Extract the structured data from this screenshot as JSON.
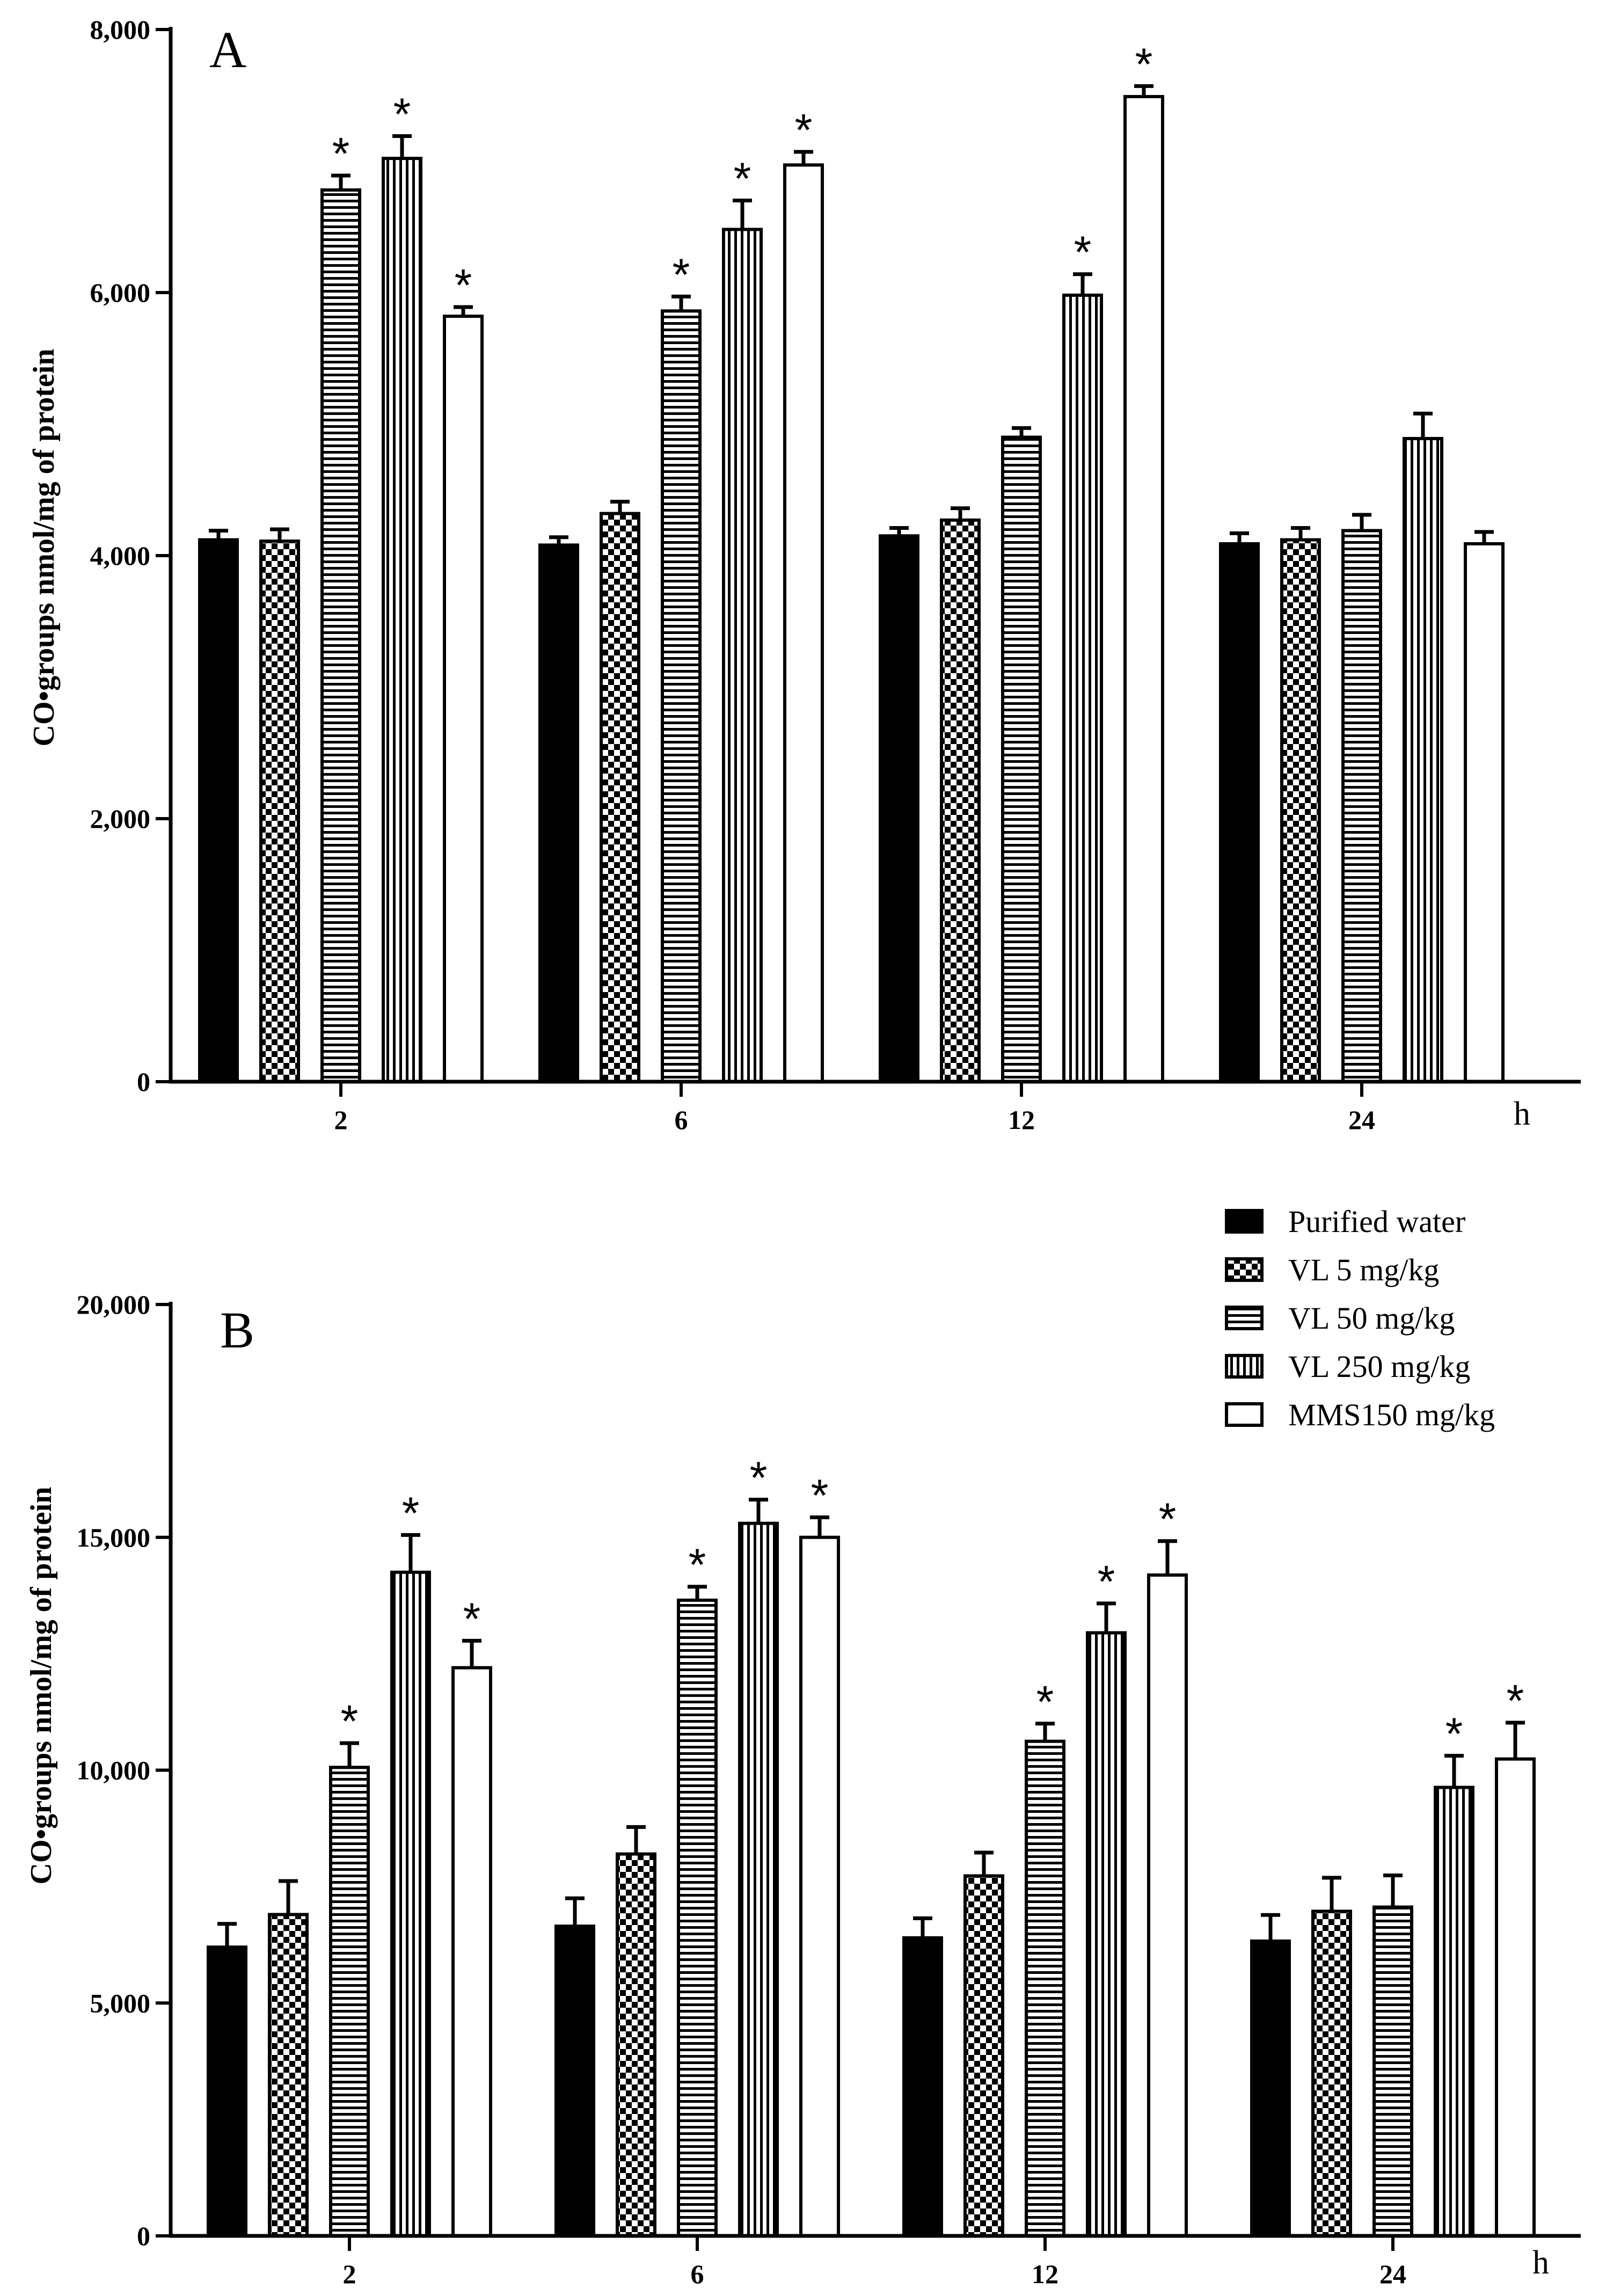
{
  "legend": {
    "items": [
      {
        "label": "Purified water",
        "pattern": "solid"
      },
      {
        "label": "VL 5 mg/kg",
        "pattern": "checker"
      },
      {
        "label": "VL 50 mg/kg",
        "pattern": "hlines"
      },
      {
        "label": "VL 250 mg/kg",
        "pattern": "vlines"
      },
      {
        "label": "MMS150 mg/kg",
        "pattern": "empty"
      }
    ]
  },
  "chart_data": [
    {
      "type": "bar",
      "panel_label": "A",
      "ylabel": "CO•groups nmol/mg of protein",
      "xunit": "h",
      "categories": [
        "2",
        "6",
        "12",
        "24"
      ],
      "ylim": [
        0,
        8000
      ],
      "yticks": [
        0,
        2000,
        4000,
        6000,
        8000
      ],
      "ytick_labels": [
        "0",
        "2,000",
        "4,000",
        "6,000",
        "8,000"
      ],
      "series": [
        {
          "name": "Purified water",
          "values": [
            4120,
            4080,
            4150,
            4090
          ],
          "errors": [
            70,
            60,
            60,
            80
          ],
          "significant": [
            false,
            false,
            false,
            false
          ]
        },
        {
          "name": "VL 5 mg/kg",
          "values": [
            4110,
            4320,
            4270,
            4120
          ],
          "errors": [
            90,
            90,
            90,
            90
          ],
          "significant": [
            false,
            false,
            false,
            false
          ]
        },
        {
          "name": "VL 50 mg/kg",
          "values": [
            6780,
            5860,
            4900,
            4190
          ],
          "errors": [
            110,
            110,
            70,
            120
          ],
          "significant": [
            true,
            true,
            false,
            false
          ]
        },
        {
          "name": "VL 250 mg/kg",
          "values": [
            7020,
            6480,
            5980,
            4890
          ],
          "errors": [
            170,
            220,
            160,
            190
          ],
          "significant": [
            true,
            true,
            true,
            false
          ]
        },
        {
          "name": "MMS150 mg/kg",
          "values": [
            5820,
            6970,
            7490,
            4090
          ],
          "errors": [
            70,
            100,
            80,
            90
          ],
          "significant": [
            true,
            true,
            true,
            false
          ]
        }
      ]
    },
    {
      "type": "bar",
      "panel_label": "B",
      "ylabel": "CO•groups nmol/mg of protein",
      "xunit": "h",
      "categories": [
        "2",
        "6",
        "12",
        "24"
      ],
      "ylim": [
        0,
        20000
      ],
      "yticks": [
        0,
        5000,
        10000,
        15000,
        20000
      ],
      "ytick_labels": [
        "0",
        "5,000",
        "10,000",
        "15,000",
        "20,000"
      ],
      "series": [
        {
          "name": "Purified water",
          "values": [
            6200,
            6650,
            6400,
            6330
          ],
          "errors": [
            500,
            600,
            420,
            560
          ],
          "significant": [
            false,
            false,
            false,
            false
          ]
        },
        {
          "name": "VL 5 mg/kg",
          "values": [
            6900,
            8200,
            7730,
            6970
          ],
          "errors": [
            720,
            580,
            500,
            720
          ],
          "significant": [
            false,
            false,
            false,
            false
          ]
        },
        {
          "name": "VL 50 mg/kg",
          "values": [
            10060,
            13650,
            10620,
            7060
          ],
          "errors": [
            520,
            290,
            380,
            680
          ],
          "significant": [
            true,
            true,
            true,
            false
          ]
        },
        {
          "name": "VL 250 mg/kg",
          "values": [
            14250,
            15300,
            12950,
            9630
          ],
          "errors": [
            800,
            510,
            630,
            680
          ],
          "significant": [
            true,
            true,
            true,
            true
          ]
        },
        {
          "name": "MMS150 mg/kg",
          "values": [
            12200,
            15000,
            14190,
            10240
          ],
          "errors": [
            580,
            430,
            730,
            780
          ],
          "significant": [
            true,
            true,
            true,
            true
          ]
        }
      ]
    }
  ]
}
